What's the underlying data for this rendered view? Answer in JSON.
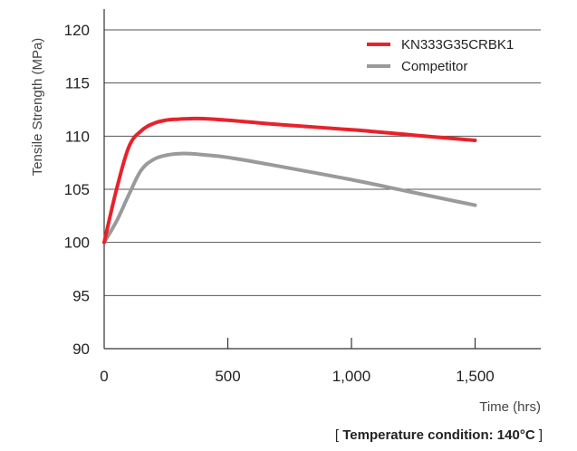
{
  "chart_data": {
    "type": "line",
    "title": "",
    "ylabel": "Tensile Strength (MPa)",
    "xlabel": "Time (hrs)",
    "xlim": [
      0,
      1750
    ],
    "ylim": [
      90,
      122
    ],
    "x_ticks": [
      0,
      500,
      1000,
      1500
    ],
    "x_tick_labels": [
      "0",
      "500",
      "1,000",
      "1,500"
    ],
    "y_ticks": [
      90,
      95,
      100,
      105,
      110,
      115,
      120
    ],
    "y_tick_labels": [
      "90",
      "95",
      "100",
      "105",
      "110",
      "115",
      "120"
    ],
    "grid": "horizontal",
    "legend_position": "top-right",
    "series": [
      {
        "name": "KN333G35CRBK1",
        "color": "#e8222b",
        "x": [
          0,
          50,
          100,
          150,
          200,
          250,
          300,
          350,
          400,
          500,
          700,
          1000,
          1250,
          1500
        ],
        "y": [
          100,
          105,
          109,
          110.5,
          111.2,
          111.5,
          111.6,
          111.65,
          111.65,
          111.5,
          111.1,
          110.6,
          110.1,
          109.6
        ]
      },
      {
        "name": "Competitor",
        "color": "#9a9a9a",
        "x": [
          0,
          50,
          100,
          150,
          200,
          250,
          300,
          350,
          400,
          500,
          700,
          1000,
          1250,
          1500
        ],
        "y": [
          100,
          102,
          104.5,
          106.8,
          107.8,
          108.2,
          108.35,
          108.35,
          108.25,
          108.0,
          107.2,
          105.9,
          104.7,
          103.5
        ]
      }
    ]
  },
  "caption": {
    "open_bracket": "[",
    "label": "Temperature condition:",
    "value": "140°C",
    "close_bracket": "]"
  }
}
